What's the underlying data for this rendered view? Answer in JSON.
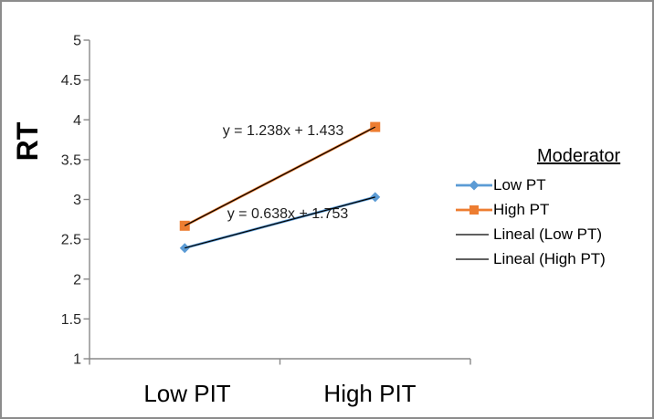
{
  "chart_data": {
    "type": "line",
    "title": "",
    "ylabel": "RT",
    "xlabel": "",
    "categories": [
      "Low PIT",
      "High PIT"
    ],
    "series": [
      {
        "name": "Low PT",
        "color": "#5B9BD5",
        "marker": "diamond",
        "values": [
          2.39,
          3.03
        ],
        "equation": "y = 0.638x + 1.753"
      },
      {
        "name": "High PT",
        "color": "#ED7D31",
        "marker": "square",
        "values": [
          2.67,
          3.91
        ],
        "equation": "y = 1.238x + 1.433"
      }
    ],
    "trendlines": [
      {
        "name": "Lineal (Low PT)",
        "applies_to": "Low PT",
        "color": "#000000"
      },
      {
        "name": "Lineal (High PT)",
        "applies_to": "High PT",
        "color": "#000000"
      }
    ],
    "legend": {
      "title": "Moderator",
      "position": "right"
    },
    "ylim": [
      1,
      5
    ],
    "yticks": [
      5,
      4.5,
      4,
      3.5,
      3,
      2.5,
      2,
      1.5,
      1
    ],
    "ytick_labels": [
      "5",
      "4.5",
      "4",
      "3.5",
      "3",
      "2.5",
      "2",
      "1.5",
      "1"
    ],
    "grid": false,
    "axis_color": "#898989"
  }
}
